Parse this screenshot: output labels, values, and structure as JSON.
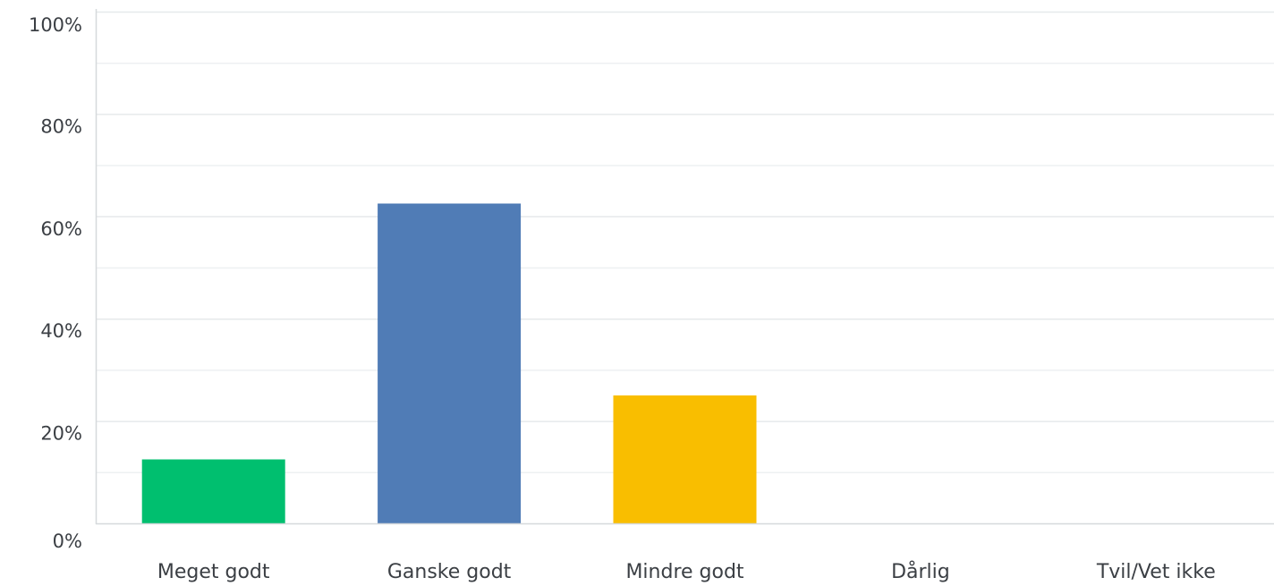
{
  "chart_data": {
    "type": "bar",
    "categories": [
      "Meget godt",
      "Ganske godt",
      "Mindre godt",
      "Dårlig",
      "Tvil/Vet ikke"
    ],
    "values": [
      12.5,
      62.5,
      25.0,
      0,
      0
    ],
    "colors": [
      "#00bf6f",
      "#507cb6",
      "#f9be00",
      "#6bc8cd",
      "#ff8b4f"
    ],
    "title": "",
    "xlabel": "",
    "ylabel": "",
    "ylim": [
      0,
      100
    ],
    "y_ticks": [
      {
        "value": 0,
        "label": "0%"
      },
      {
        "value": 20,
        "label": "20%"
      },
      {
        "value": 40,
        "label": "40%"
      },
      {
        "value": 60,
        "label": "60%"
      },
      {
        "value": 80,
        "label": "80%"
      },
      {
        "value": 100,
        "label": "100%"
      }
    ],
    "minor_gridlines": [
      10,
      30,
      50,
      70,
      90
    ],
    "grid": true,
    "legend": "none"
  }
}
